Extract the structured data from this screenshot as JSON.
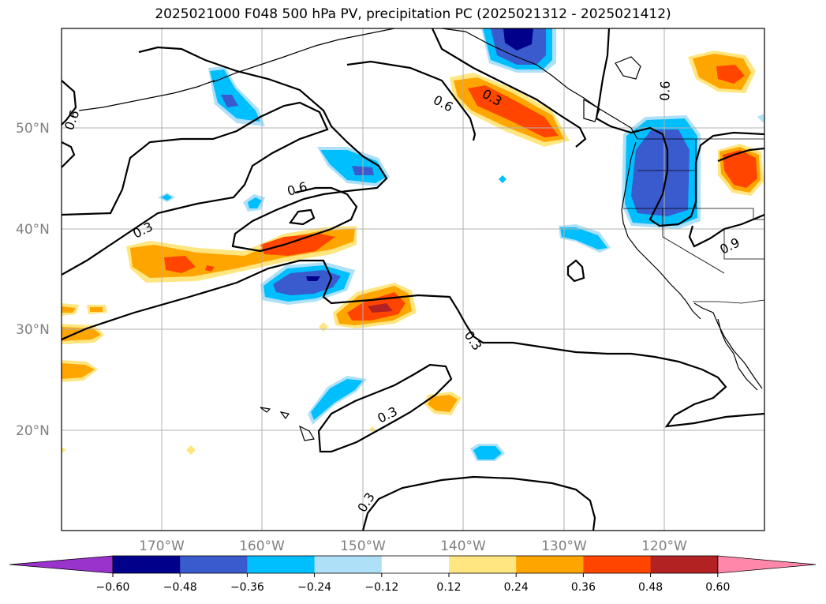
{
  "title": "2025021000 F048 500 hPa PV, precipitation PC (2025021312 - 2025021412)",
  "lat_labels": [
    "50°N",
    "40°N",
    "30°N",
    "20°N"
  ],
  "lon_labels": [
    "170°W",
    "160°W",
    "150°W",
    "140°W",
    "130°W",
    "120°W"
  ],
  "pv_labels": [
    "0.6",
    "0.6",
    "0.3",
    "0.6",
    "0.6",
    "0.3",
    "0.3",
    "0.3",
    "0.3",
    "0.9"
  ],
  "colorbar": {
    "ticks": [
      "−0.60",
      "−0.48",
      "−0.36",
      "−0.24",
      "−0.12",
      "0.12",
      "0.24",
      "0.36",
      "0.48",
      "0.60"
    ],
    "colors": [
      "#9933cc",
      "#00008b",
      "#3a5bcd",
      "#00bfff",
      "#aee0f8",
      "#ffffff",
      "#ffe680",
      "#ffa500",
      "#ff4500",
      "#b22222",
      "#ff88aa"
    ]
  }
}
